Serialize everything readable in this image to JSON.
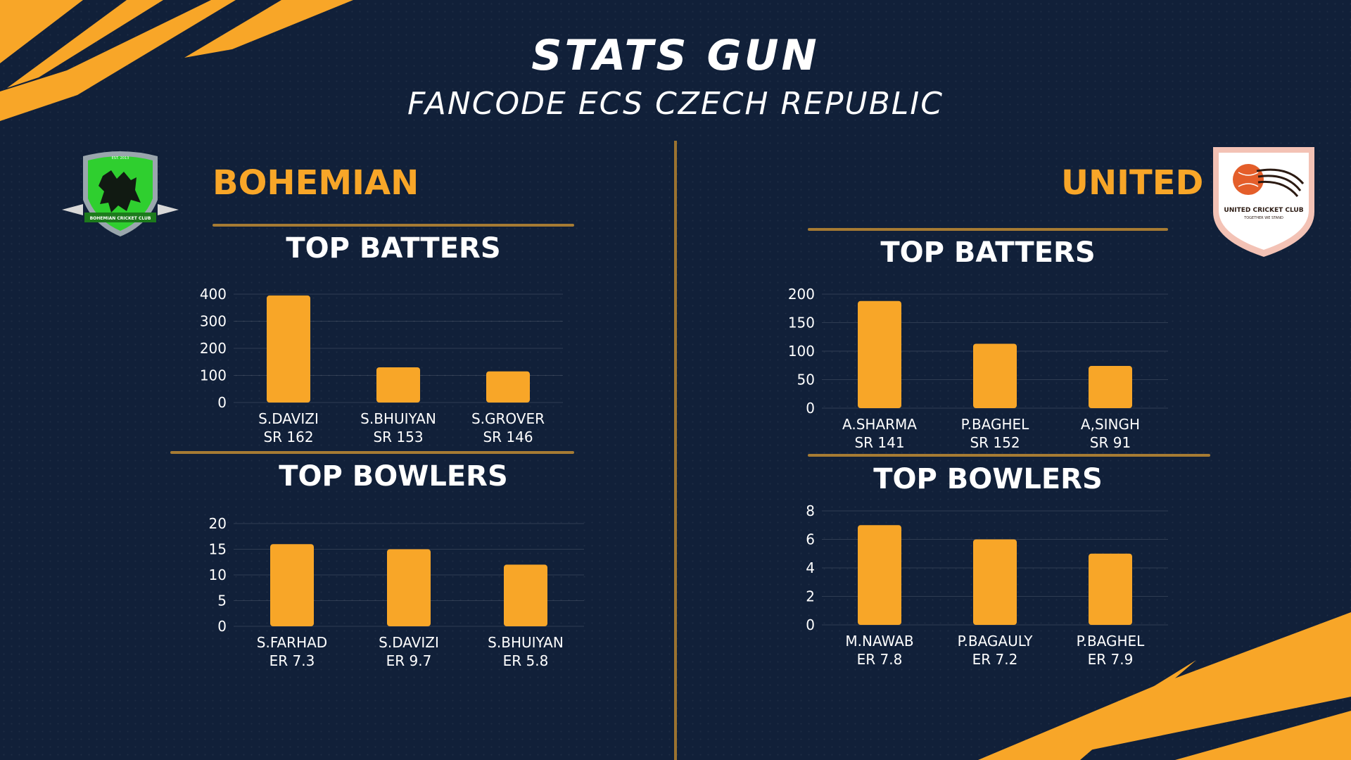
{
  "header": {
    "title": "STATS GUN",
    "subtitle": "FANCODE ECS CZECH REPUBLIC"
  },
  "colors": {
    "background": "#112039",
    "accent": "#f8a628",
    "bar": "#f8a628",
    "text": "#ffffff",
    "rule": "#a67b33"
  },
  "left": {
    "team_name": "BOHEMIAN",
    "logo_text": "BOHEMIAN CRICKET CLUB",
    "logo_year": "EST. 2013",
    "batters_title": "TOP BATTERS",
    "bowlers_title": "TOP BOWLERS"
  },
  "right": {
    "team_name": "UNITED",
    "logo_text": "UNITED CRICKET CLUB",
    "logo_tagline": "TOGETHER WE STAND",
    "batters_title": "TOP BATTERS",
    "bowlers_title": "TOP BOWLERS"
  },
  "chart_data": [
    {
      "type": "bar",
      "team": "BOHEMIAN",
      "title": "TOP BATTERS",
      "categories": [
        "S.DAVIZI",
        "S.BHUIYAN",
        "S.GROVER"
      ],
      "sublabels": [
        "SR 162",
        "SR 153",
        "SR 146"
      ],
      "values": [
        395,
        130,
        115
      ],
      "ylim": [
        0,
        400
      ],
      "yticks": [
        0,
        100,
        200,
        300,
        400
      ],
      "grid": true
    },
    {
      "type": "bar",
      "team": "BOHEMIAN",
      "title": "TOP BOWLERS",
      "categories": [
        "S.FARHAD",
        "S.DAVIZI",
        "S.BHUIYAN"
      ],
      "sublabels": [
        "ER 7.3",
        "ER 9.7",
        "ER 5.8"
      ],
      "values": [
        16,
        15,
        12
      ],
      "ylim": [
        0,
        20
      ],
      "yticks": [
        0,
        5,
        10,
        15,
        20
      ],
      "grid": true
    },
    {
      "type": "bar",
      "team": "UNITED",
      "title": "TOP BATTERS",
      "categories": [
        "A.SHARMA",
        "P.BAGHEL",
        "A,SINGH"
      ],
      "sublabels": [
        "SR 141",
        "SR 152",
        "SR 91"
      ],
      "values": [
        188,
        113,
        74
      ],
      "ylim": [
        0,
        200
      ],
      "yticks": [
        0,
        50,
        100,
        150,
        200
      ],
      "grid": true
    },
    {
      "type": "bar",
      "team": "UNITED",
      "title": "TOP BOWLERS",
      "categories": [
        "M.NAWAB",
        "P.BAGAULY",
        "P.BAGHEL"
      ],
      "sublabels": [
        "ER 7.8",
        "ER 7.2",
        "ER 7.9"
      ],
      "values": [
        7,
        6,
        5
      ],
      "ylim": [
        0,
        8
      ],
      "yticks": [
        0,
        2,
        4,
        6,
        8
      ],
      "grid": true
    }
  ]
}
